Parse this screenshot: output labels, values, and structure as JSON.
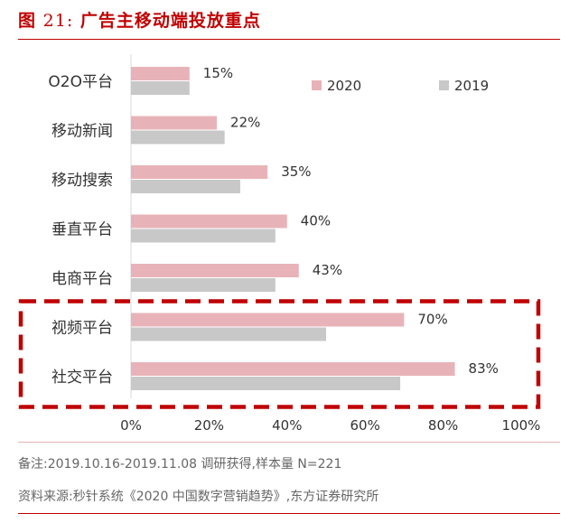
{
  "figure": {
    "title_prefix": "图",
    "title_number": "21:",
    "title_text": "广告主移动端投放重点",
    "note": "备注:2019.10.16-2019.11.08 调研获得,样本量 N=221",
    "source": "资料来源:秒针系统《2020 中国数字营销趋势》,东方证券研究所"
  },
  "colors": {
    "series_2020": "#e8b3b8",
    "series_2019": "#c8c8c8",
    "highlight_border": "#c00000",
    "axis": "#d9d9d9",
    "title": "#c00000"
  },
  "chart_data": {
    "type": "bar",
    "orientation": "horizontal",
    "title": "广告主移动端投放重点",
    "categories": [
      "O2O平台",
      "移动新闻",
      "移动搜索",
      "垂直平台",
      "电商平台",
      "视频平台",
      "社交平台"
    ],
    "series": [
      {
        "name": "2020",
        "values": [
          15,
          22,
          35,
          40,
          43,
          70,
          83
        ]
      },
      {
        "name": "2019",
        "values": [
          15,
          24,
          28,
          37,
          37,
          50,
          69
        ]
      }
    ],
    "data_labels": [
      "15%",
      "22%",
      "35%",
      "40%",
      "43%",
      "70%",
      "83%"
    ],
    "x_ticks": [
      "0%",
      "20%",
      "40%",
      "60%",
      "80%",
      "100%"
    ],
    "xlim": [
      0,
      100
    ],
    "legend": [
      "2020",
      "2019"
    ],
    "legend_position": "top-right",
    "highlighted_categories": [
      "视频平台",
      "社交平台"
    ]
  }
}
